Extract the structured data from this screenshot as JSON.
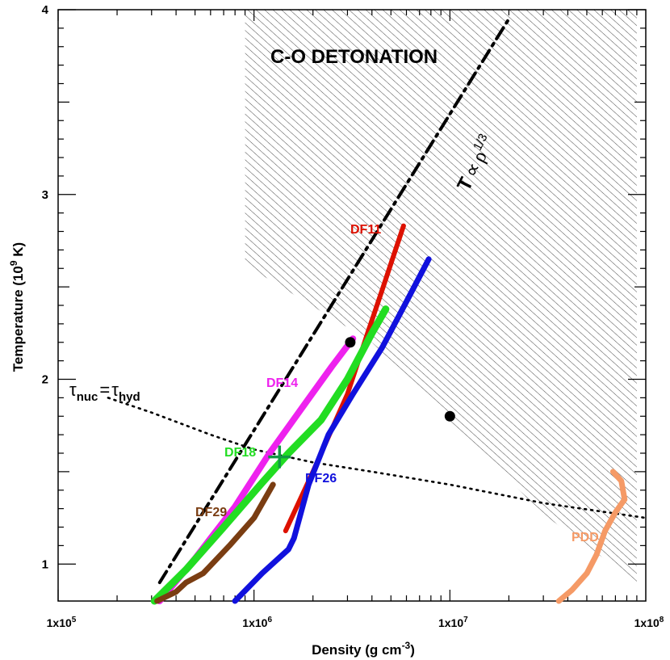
{
  "chart_data": {
    "type": "line",
    "title": "C-O DETONATION",
    "xlabel": "Density (g cm",
    "xlabel_exp": "-3",
    "xlabel_close": ")",
    "ylabel": "Temperature (10",
    "ylabel_exp": "9",
    "ylabel_close": " K)",
    "xscale": "log",
    "xlim": [
      100000,
      100000000
    ],
    "ylim": [
      0.8,
      4.0
    ],
    "xtick_labels": [
      {
        "value": 100000,
        "mant": "1x10",
        "exp": "5"
      },
      {
        "value": 1000000,
        "mant": "1x10",
        "exp": "6"
      },
      {
        "value": 10000000,
        "mant": "1x10",
        "exp": "7"
      },
      {
        "value": 100000000,
        "mant": "1x10",
        "exp": "8"
      }
    ],
    "ytick_labels": [
      {
        "value": 1,
        "label": "1"
      },
      {
        "value": 2,
        "label": "2"
      },
      {
        "value": 3,
        "label": "3"
      },
      {
        "value": 4,
        "label": "4"
      }
    ],
    "region": {
      "name": "C-O detonation region",
      "polygon": [
        [
          900000,
          4.0
        ],
        [
          90000000,
          4.0
        ],
        [
          90000000,
          0.9
        ],
        [
          30000000,
          1.27
        ],
        [
          4000000,
          2.2
        ],
        [
          900000,
          2.62
        ]
      ]
    },
    "series": [
      {
        "name": "DF11",
        "label": "DF11",
        "color": "#dd1100",
        "width": 6,
        "x": [
          1450000,
          2000000,
          3000000,
          3800000,
          4500000,
          5200000,
          5800000
        ],
        "y": [
          1.18,
          1.5,
          1.92,
          2.25,
          2.48,
          2.68,
          2.83
        ]
      },
      {
        "name": "DF14",
        "label": "DF14",
        "color": "#ee22ee",
        "width": 8,
        "x": [
          330000,
          500000,
          800000,
          1200000,
          1800000,
          2500000,
          3200000
        ],
        "y": [
          0.8,
          1.03,
          1.31,
          1.6,
          1.86,
          2.07,
          2.22
        ]
      },
      {
        "name": "DF18",
        "label": "DF18",
        "color": "#22dd22",
        "width": 9,
        "x": [
          310000,
          450000,
          700000,
          1100000,
          1500000,
          2200000,
          3000000,
          4000000,
          4700000
        ],
        "y": [
          0.8,
          0.97,
          1.2,
          1.44,
          1.6,
          1.78,
          2.0,
          2.25,
          2.38
        ]
      },
      {
        "name": "DF26",
        "label": "DF26",
        "color": "#1111dd",
        "width": 7,
        "x": [
          800000,
          1100000,
          1500000,
          1600000,
          1900000,
          2400000,
          3200000,
          4500000,
          6000000,
          7800000
        ],
        "y": [
          0.8,
          0.95,
          1.08,
          1.14,
          1.43,
          1.7,
          1.92,
          2.17,
          2.42,
          2.65
        ]
      },
      {
        "name": "DF29",
        "label": "DF29",
        "color": "#7a3d12",
        "width": 7,
        "x": [
          320000,
          400000,
          450000,
          550000,
          750000,
          1000000,
          1250000
        ],
        "y": [
          0.8,
          0.85,
          0.9,
          0.95,
          1.1,
          1.25,
          1.43
        ]
      },
      {
        "name": "PDD",
        "label": "PDD",
        "color": "#f59a66",
        "width": 7,
        "x": [
          36000000,
          42000000,
          50000000,
          56000000,
          62000000,
          70000000,
          78000000,
          75000000,
          68000000
        ],
        "y": [
          0.8,
          0.86,
          0.95,
          1.05,
          1.18,
          1.28,
          1.35,
          1.45,
          1.5
        ]
      }
    ],
    "power_law": {
      "label_T": "T",
      "label_prop": "∝",
      "label_rho": "ρ",
      "label_exp": "1/3",
      "x": [
        330000,
        20000000
      ],
      "y": [
        0.9,
        3.95
      ]
    },
    "timescale_line": {
      "label_tau1": "τ",
      "label_sub1": "nuc",
      "label_eq": "=",
      "label_tau2": "τ",
      "label_sub2": "hyd",
      "x": [
        180000,
        300000,
        600000,
        1000000,
        2000000,
        4000000,
        10000000,
        30000000,
        100000000
      ],
      "y": [
        1.9,
        1.82,
        1.7,
        1.62,
        1.55,
        1.5,
        1.43,
        1.33,
        1.25
      ]
    },
    "points": [
      {
        "name": "point-a",
        "x": 3100000,
        "y": 2.2
      },
      {
        "name": "point-b",
        "x": 10000000,
        "y": 1.8
      }
    ],
    "cross_marker": {
      "x": 1350000,
      "y": 1.58,
      "color": "#119944"
    }
  }
}
